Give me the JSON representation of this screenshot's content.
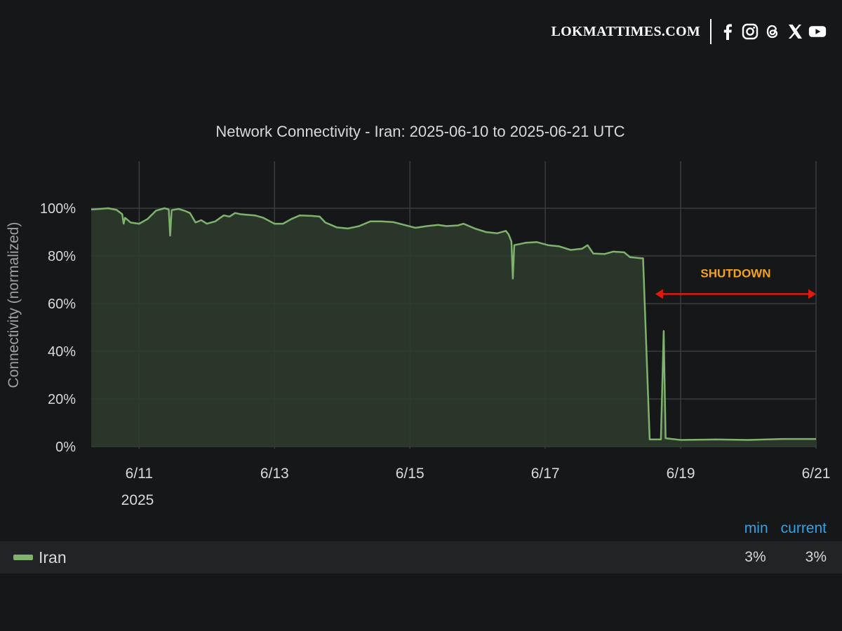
{
  "brand": {
    "name": "LOKMATTIMES.COM",
    "icons": [
      "facebook-icon",
      "instagram-icon",
      "threads-icon",
      "x-icon",
      "youtube-icon"
    ]
  },
  "chart_data": {
    "type": "area",
    "title": "Network Connectivity - Iran: 2025-06-10 to 2025-06-21 UTC",
    "ylabel": "Connectivity (normalized)",
    "xlabel": "",
    "x_axis_year": "2025",
    "x_ticks": [
      "6/11",
      "6/13",
      "6/15",
      "6/17",
      "6/19",
      "6/21"
    ],
    "y_ticks": [
      "0%",
      "20%",
      "40%",
      "60%",
      "80%",
      "100%"
    ],
    "ylim": [
      0,
      100
    ],
    "xlim": [
      "2025-06-10T07:00",
      "2025-06-21T00:00"
    ],
    "grid": true,
    "colors": {
      "line": "#7eb26d",
      "fill": "#2c3a2c",
      "background": "#161719",
      "annotation_text": "#f2a31b",
      "annotation_arrow": "#e0190f"
    },
    "annotation": {
      "text": "SHUTDOWN",
      "from": "2025-06-18T15:00",
      "to": "2025-06-21T00:00",
      "y": 64
    },
    "series": [
      {
        "name": "Iran",
        "points": [
          [
            "2025-06-10T07:00",
            99.5
          ],
          [
            "2025-06-10T10:00",
            99.7
          ],
          [
            "2025-06-10T13:00",
            100
          ],
          [
            "2025-06-10T16:00",
            99.3
          ],
          [
            "2025-06-10T18:00",
            97.5
          ],
          [
            "2025-06-10T18:30",
            93.5
          ],
          [
            "2025-06-10T19:00",
            96
          ],
          [
            "2025-06-10T21:00",
            94
          ],
          [
            "2025-06-11T00:00",
            93.5
          ],
          [
            "2025-06-11T03:00",
            95.5
          ],
          [
            "2025-06-11T06:00",
            99
          ],
          [
            "2025-06-11T09:00",
            100
          ],
          [
            "2025-06-11T10:30",
            99.5
          ],
          [
            "2025-06-11T11:00",
            88.5
          ],
          [
            "2025-06-11T11:30",
            99.2
          ],
          [
            "2025-06-11T14:00",
            99.7
          ],
          [
            "2025-06-11T16:00",
            99
          ],
          [
            "2025-06-11T18:00",
            98
          ],
          [
            "2025-06-11T20:00",
            94
          ],
          [
            "2025-06-11T22:00",
            95
          ],
          [
            "2025-06-12T00:00",
            93.5
          ],
          [
            "2025-06-12T03:00",
            94.5
          ],
          [
            "2025-06-12T06:00",
            97
          ],
          [
            "2025-06-12T08:00",
            96.5
          ],
          [
            "2025-06-12T10:00",
            98
          ],
          [
            "2025-06-12T12:00",
            97.5
          ],
          [
            "2025-06-12T14:00",
            97.3
          ],
          [
            "2025-06-12T17:00",
            97
          ],
          [
            "2025-06-12T20:00",
            96
          ],
          [
            "2025-06-13T00:00",
            93.5
          ],
          [
            "2025-06-13T03:00",
            93.5
          ],
          [
            "2025-06-13T06:00",
            95.5
          ],
          [
            "2025-06-13T09:00",
            97
          ],
          [
            "2025-06-13T13:00",
            96.8
          ],
          [
            "2025-06-13T16:00",
            96.5
          ],
          [
            "2025-06-13T18:00",
            94
          ],
          [
            "2025-06-13T22:00",
            92
          ],
          [
            "2025-06-14T02:00",
            91.5
          ],
          [
            "2025-06-14T06:00",
            92.5
          ],
          [
            "2025-06-14T10:00",
            94.5
          ],
          [
            "2025-06-14T14:00",
            94.5
          ],
          [
            "2025-06-14T18:00",
            94.2
          ],
          [
            "2025-06-14T22:00",
            93
          ],
          [
            "2025-06-15T02:00",
            91.8
          ],
          [
            "2025-06-15T06:00",
            92.5
          ],
          [
            "2025-06-15T10:00",
            93
          ],
          [
            "2025-06-15T13:00",
            92.5
          ],
          [
            "2025-06-15T17:00",
            92.8
          ],
          [
            "2025-06-15T19:00",
            93.5
          ],
          [
            "2025-06-15T23:00",
            91.5
          ],
          [
            "2025-06-16T03:00",
            90
          ],
          [
            "2025-06-16T07:00",
            89.5
          ],
          [
            "2025-06-16T10:00",
            90.5
          ],
          [
            "2025-06-16T11:00",
            89
          ],
          [
            "2025-06-16T12:00",
            86
          ],
          [
            "2025-06-16T12:30",
            70.5
          ],
          [
            "2025-06-16T13:00",
            84.5
          ],
          [
            "2025-06-16T17:00",
            85.5
          ],
          [
            "2025-06-16T21:00",
            85.8
          ],
          [
            "2025-06-17T01:00",
            84.5
          ],
          [
            "2025-06-17T05:00",
            84
          ],
          [
            "2025-06-17T09:00",
            82.5
          ],
          [
            "2025-06-17T13:00",
            83
          ],
          [
            "2025-06-17T15:00",
            84.5
          ],
          [
            "2025-06-17T17:00",
            81
          ],
          [
            "2025-06-17T21:00",
            80.8
          ],
          [
            "2025-06-18T00:00",
            81.8
          ],
          [
            "2025-06-18T04:00",
            81.5
          ],
          [
            "2025-06-18T06:00",
            79.5
          ],
          [
            "2025-06-18T10:00",
            79
          ],
          [
            "2025-06-18T10:40",
            79
          ],
          [
            "2025-06-18T13:00",
            3
          ],
          [
            "2025-06-18T17:00",
            3
          ],
          [
            "2025-06-18T18:00",
            48.5
          ],
          [
            "2025-06-18T18:40",
            3.5
          ],
          [
            "2025-06-19T00:00",
            2.8
          ],
          [
            "2025-06-19T12:00",
            3
          ],
          [
            "2025-06-20T00:00",
            2.8
          ],
          [
            "2025-06-20T12:00",
            3.2
          ],
          [
            "2025-06-21T00:00",
            3.2
          ]
        ]
      }
    ]
  },
  "legend": {
    "columns": [
      "min",
      "current"
    ],
    "rows": [
      {
        "name": "Iran",
        "min": "3%",
        "current": "3%"
      }
    ]
  }
}
